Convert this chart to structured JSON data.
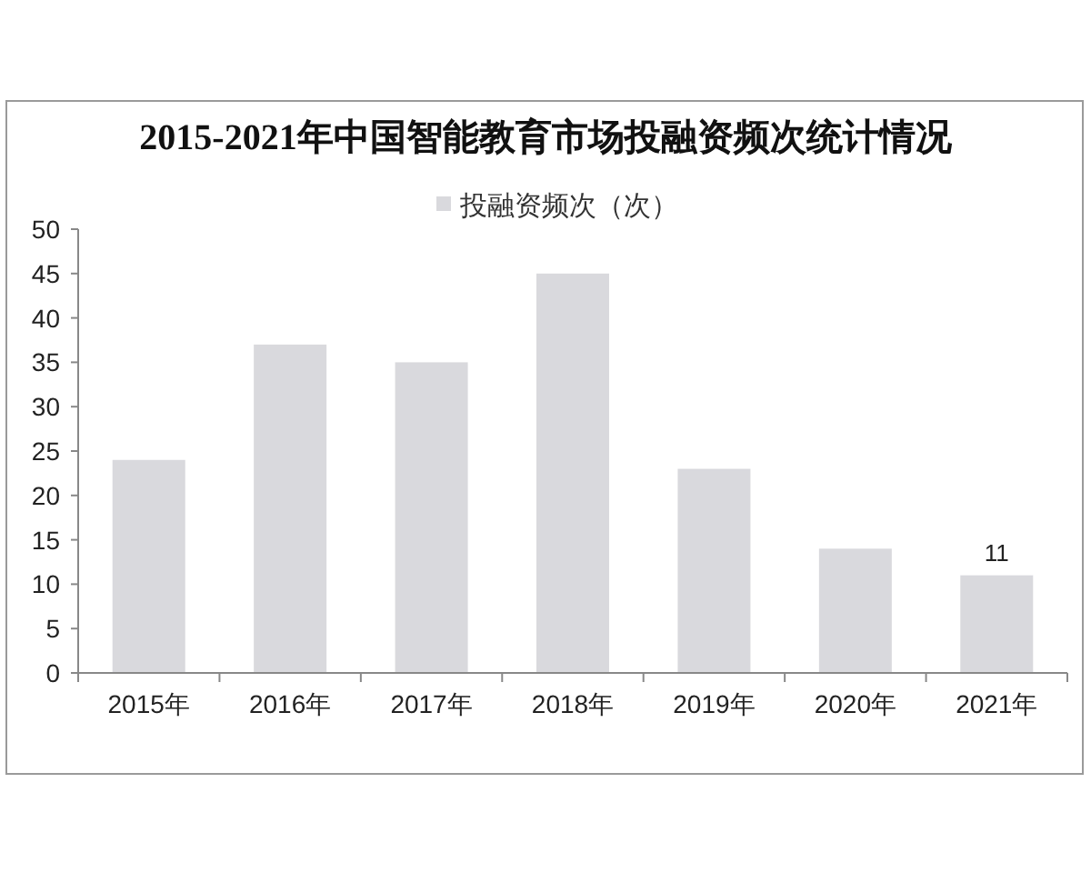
{
  "chart_data": {
    "type": "bar",
    "title": "2015-2021年中国智能教育市场投融资频次统计情况",
    "categories": [
      "2015年",
      "2016年",
      "2017年",
      "2018年",
      "2019年",
      "2020年",
      "2021年"
    ],
    "series": [
      {
        "name": "投融资频次（次）",
        "color": "#d9d9dd",
        "values": [
          24,
          37,
          35,
          45,
          23,
          14,
          11
        ],
        "value_labels": [
          null,
          null,
          null,
          null,
          null,
          null,
          "11"
        ]
      }
    ],
    "ylim": [
      0,
      50
    ],
    "yticks": [
      0,
      5,
      10,
      15,
      20,
      25,
      30,
      35,
      40,
      45,
      50
    ],
    "legend": "top"
  }
}
